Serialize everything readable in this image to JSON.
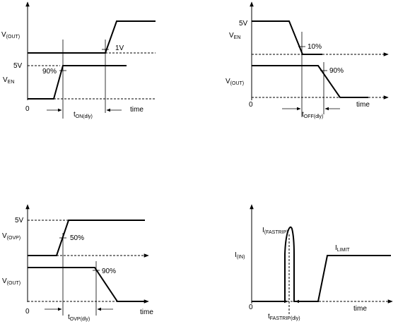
{
  "panels": {
    "ton": {
      "vout": "V",
      "vout_sub": "(OUT)",
      "ven": "V",
      "ven_sub": "EN",
      "v5": "5V",
      "pct": "90%",
      "delta": "1V",
      "zero": "0",
      "time": "time",
      "delay": "t",
      "delay_sub": "ON(dly)"
    },
    "toff": {
      "v5": "5V",
      "ven": "V",
      "ven_sub": "EN",
      "vout": "V",
      "vout_sub": "(OUT)",
      "pct_en": "10%",
      "pct_out": "90%",
      "zero": "0",
      "time": "time",
      "delay": "t",
      "delay_sub": "OFF(dly)"
    },
    "tovp": {
      "v5": "5V",
      "vovp": "V",
      "vovp_sub": "(OVP)",
      "vout": "V",
      "vout_sub": "(OUT)",
      "pct_ovp": "50%",
      "pct_out": "90%",
      "zero": "0",
      "time": "time",
      "delay": "t",
      "delay_sub": "OVP(dly)"
    },
    "tfast": {
      "ifast": "I",
      "ifast_sub": "(FASTRIP)",
      "ilimit": "I",
      "ilimit_sub": "LIMIT",
      "iin": "I",
      "iin_sub": "(IN)",
      "zero": "0",
      "time": "time",
      "delay": "t",
      "delay_sub": "FASTRIP(dly)"
    }
  },
  "colors": {
    "ink": "#000000",
    "background": "#ffffff"
  }
}
